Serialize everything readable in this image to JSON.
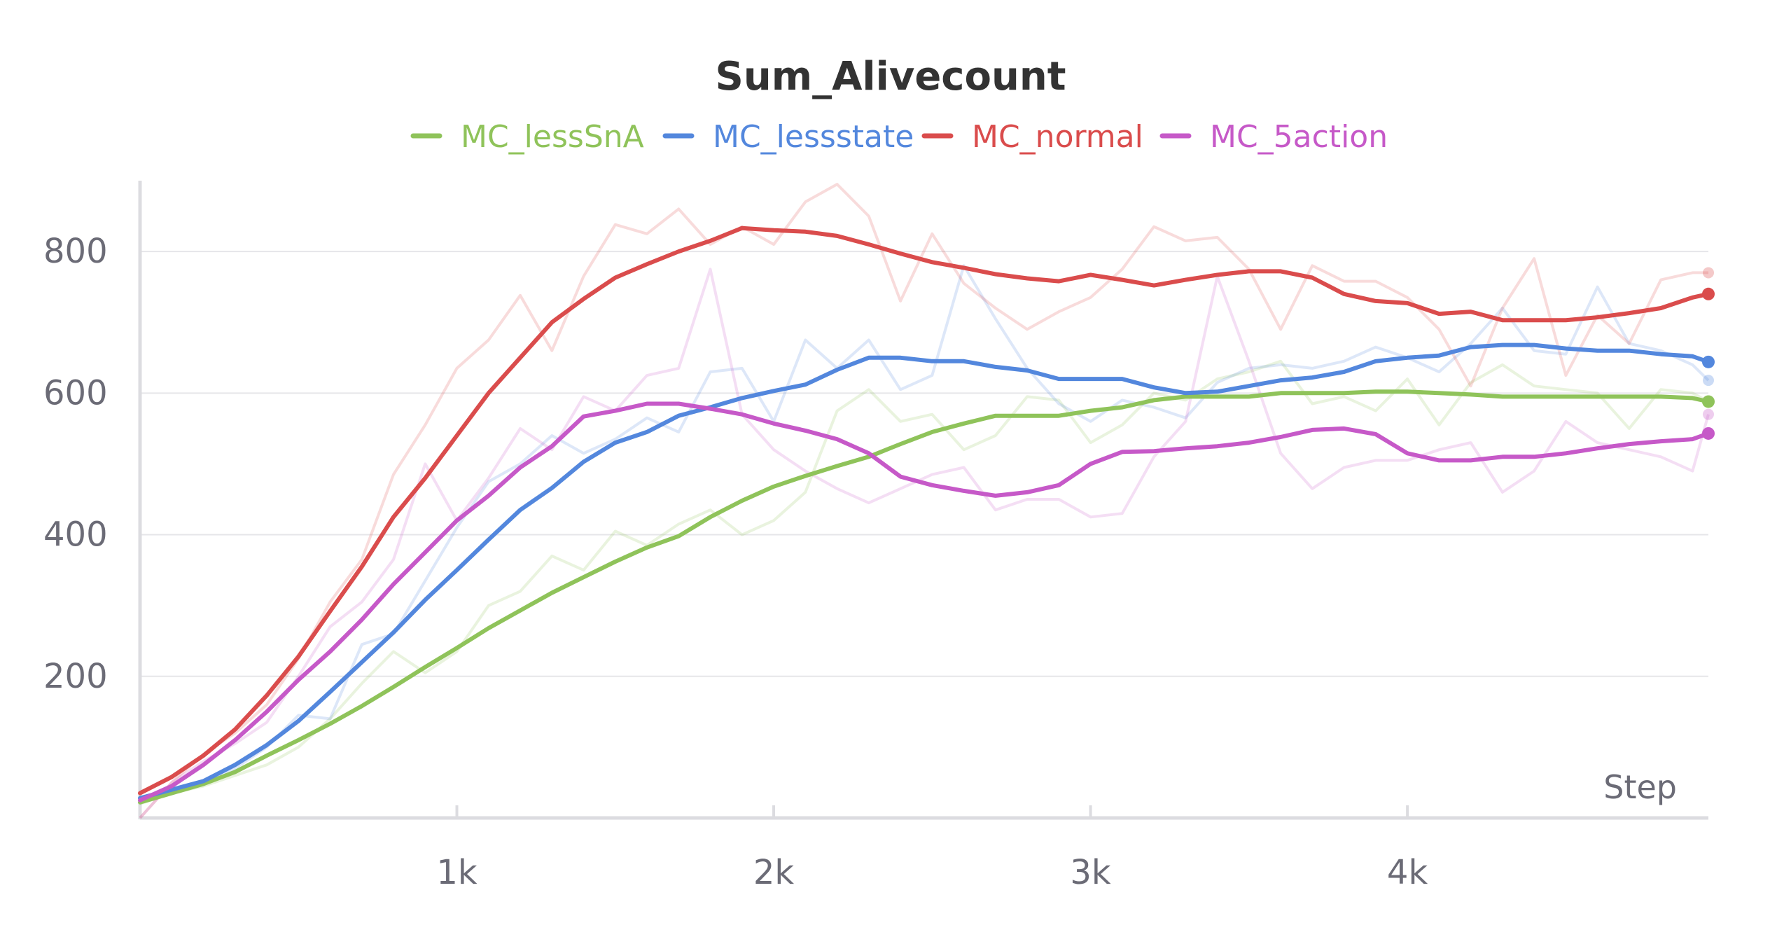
{
  "chart_data": {
    "type": "line",
    "title": "Sum_Alivecount",
    "xlabel": "Step",
    "ylabel": "",
    "xlim": [
      0,
      4950
    ],
    "ylim": [
      0,
      900
    ],
    "x_ticks": [
      {
        "value": 1000,
        "label": "1k"
      },
      {
        "value": 2000,
        "label": "2k"
      },
      {
        "value": 3000,
        "label": "3k"
      },
      {
        "value": 4000,
        "label": "4k"
      }
    ],
    "y_ticks": [
      {
        "value": 200,
        "label": "200"
      },
      {
        "value": 400,
        "label": "400"
      },
      {
        "value": 600,
        "label": "600"
      },
      {
        "value": 800,
        "label": "800"
      }
    ],
    "grid": "horizontal",
    "legend_position": "top-center",
    "x": [
      0,
      100,
      200,
      300,
      400,
      500,
      600,
      700,
      800,
      900,
      1000,
      1100,
      1200,
      1300,
      1400,
      1500,
      1600,
      1700,
      1800,
      1900,
      2000,
      2100,
      2200,
      2300,
      2400,
      2500,
      2600,
      2700,
      2800,
      2900,
      3000,
      3100,
      3200,
      3300,
      3400,
      3500,
      3600,
      3700,
      3800,
      3900,
      4000,
      4100,
      4200,
      4300,
      4400,
      4500,
      4600,
      4700,
      4800,
      4900,
      4950
    ],
    "series": [
      {
        "name": "MC_lessSnA",
        "color": "#8fc35a",
        "smoothed": [
          22,
          35,
          48,
          65,
          88,
          110,
          133,
          158,
          185,
          213,
          240,
          268,
          293,
          318,
          340,
          362,
          382,
          398,
          425,
          448,
          468,
          483,
          497,
          510,
          528,
          545,
          557,
          568,
          568,
          568,
          575,
          580,
          590,
          595,
          595,
          595,
          600,
          600,
          600,
          602,
          602,
          600,
          598,
          595,
          595,
          595,
          595,
          595,
          595,
          593,
          588
        ],
        "raw": [
          20,
          35,
          45,
          60,
          75,
          100,
          140,
          190,
          235,
          205,
          235,
          300,
          320,
          370,
          350,
          405,
          385,
          415,
          435,
          400,
          420,
          460,
          575,
          605,
          560,
          570,
          520,
          540,
          595,
          590,
          530,
          555,
          600,
          590,
          620,
          630,
          645,
          585,
          595,
          575,
          620,
          555,
          615,
          640,
          610,
          605,
          600,
          550,
          605,
          600,
          588
        ]
      },
      {
        "name": "MC_lessstate",
        "color": "#5387dd",
        "smoothed": [
          28,
          40,
          52,
          75,
          103,
          137,
          178,
          220,
          262,
          308,
          350,
          393,
          435,
          466,
          503,
          530,
          545,
          568,
          580,
          593,
          603,
          612,
          633,
          650,
          650,
          645,
          645,
          637,
          632,
          620,
          620,
          620,
          608,
          600,
          602,
          610,
          618,
          622,
          630,
          645,
          650,
          653,
          665,
          668,
          668,
          663,
          660,
          660,
          655,
          652,
          644
        ],
        "raw": [
          25,
          40,
          50,
          70,
          100,
          145,
          140,
          245,
          260,
          335,
          410,
          475,
          500,
          540,
          515,
          535,
          565,
          545,
          630,
          635,
          560,
          675,
          635,
          675,
          605,
          625,
          780,
          705,
          635,
          585,
          560,
          590,
          580,
          565,
          615,
          635,
          640,
          635,
          645,
          665,
          650,
          630,
          670,
          720,
          660,
          655,
          750,
          670,
          660,
          640,
          618
        ]
      },
      {
        "name": "MC_normal",
        "color": "#da4c4c",
        "smoothed": [
          35,
          58,
          88,
          125,
          173,
          228,
          292,
          355,
          425,
          480,
          540,
          600,
          650,
          700,
          733,
          763,
          782,
          800,
          815,
          833,
          830,
          828,
          822,
          810,
          797,
          785,
          777,
          768,
          762,
          758,
          767,
          760,
          752,
          760,
          767,
          772,
          772,
          763,
          740,
          730,
          727,
          712,
          715,
          703,
          703,
          703,
          707,
          713,
          720,
          735,
          740
        ],
        "raw": [
          0,
          50,
          90,
          120,
          160,
          225,
          305,
          365,
          485,
          555,
          635,
          675,
          738,
          660,
          765,
          838,
          825,
          860,
          810,
          835,
          810,
          870,
          895,
          850,
          730,
          825,
          755,
          720,
          690,
          715,
          735,
          775,
          835,
          815,
          820,
          775,
          690,
          780,
          758,
          758,
          735,
          690,
          610,
          720,
          790,
          625,
          710,
          670,
          760,
          770,
          770
        ]
      },
      {
        "name": "MC_5action",
        "color": "#c659c8",
        "smoothed": [
          25,
          45,
          75,
          110,
          150,
          195,
          235,
          280,
          330,
          375,
          420,
          455,
          495,
          525,
          567,
          575,
          585,
          585,
          578,
          570,
          557,
          547,
          535,
          515,
          482,
          470,
          462,
          455,
          460,
          470,
          500,
          517,
          518,
          522,
          525,
          530,
          538,
          548,
          550,
          542,
          515,
          505,
          505,
          510,
          510,
          515,
          522,
          528,
          532,
          535,
          543
        ],
        "raw": [
          0,
          50,
          80,
          105,
          135,
          200,
          270,
          305,
          365,
          500,
          420,
          480,
          550,
          520,
          595,
          575,
          625,
          635,
          775,
          570,
          520,
          490,
          465,
          445,
          465,
          485,
          495,
          435,
          450,
          450,
          425,
          430,
          510,
          560,
          765,
          645,
          515,
          465,
          495,
          505,
          505,
          520,
          530,
          460,
          490,
          560,
          530,
          520,
          510,
          490,
          570
        ]
      }
    ]
  }
}
